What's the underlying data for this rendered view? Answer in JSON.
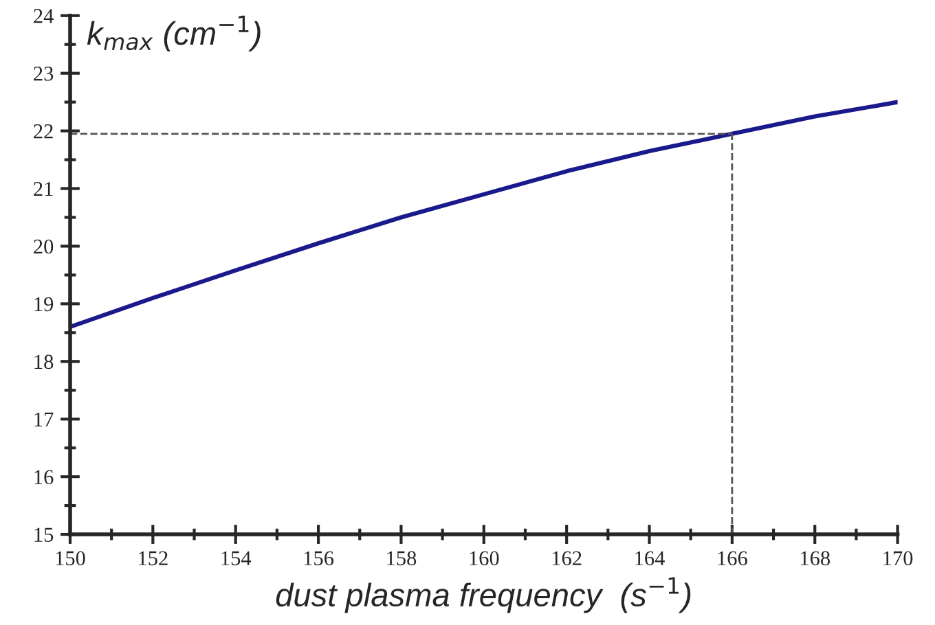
{
  "chart_data": {
    "type": "line",
    "xlabel": "dust plasma frequency  (s$^{−1}$)",
    "ylabel": "k$_{max}$ (cm$^{−1}$)",
    "x": [
      150,
      152,
      154,
      156,
      158,
      160,
      162,
      164,
      166,
      168,
      170
    ],
    "series": [
      {
        "color": "#1a1a8c",
        "values": [
          18.6,
          19.1,
          19.58,
          20.05,
          20.5,
          20.9,
          21.3,
          21.65,
          21.95,
          22.25,
          22.5
        ]
      }
    ],
    "xlim": [
      150,
      170
    ],
    "ylim": [
      15,
      24
    ],
    "xticks": [
      150,
      152,
      154,
      156,
      158,
      160,
      162,
      164,
      166,
      168,
      170
    ],
    "yticks": [
      15,
      16,
      17,
      18,
      19,
      20,
      21,
      22,
      23,
      24
    ],
    "ref_lines": [
      {
        "axis": "x",
        "value": 166,
        "color": "#555555",
        "line_style": "dashed"
      },
      {
        "axis": "y",
        "value": 21.95,
        "color": "#555555",
        "line_style": "dashed"
      }
    ],
    "grid": false,
    "legend": false,
    "marker": "none",
    "line_style": "solid"
  }
}
